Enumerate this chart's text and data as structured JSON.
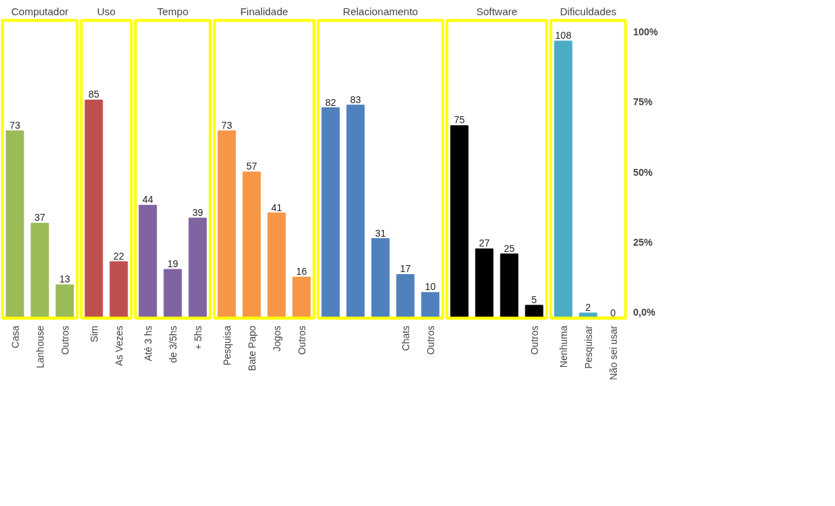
{
  "chart_data": [
    {
      "type": "bar",
      "title": "Computador",
      "categories": [
        "Casa",
        "Lanhouse",
        "Outros"
      ],
      "values": [
        73,
        37,
        13
      ],
      "color": "#9bbb59",
      "data_labels": true,
      "ylim": [
        0,
        116
      ],
      "tick_labels": "x"
    },
    {
      "type": "bar",
      "title": "Uso",
      "categories": [
        "Sim",
        "As Vezes"
      ],
      "values": [
        85,
        22
      ],
      "color": "#c0504d",
      "data_labels": true,
      "ylim": [
        0,
        116
      ],
      "tick_labels": "x"
    },
    {
      "type": "bar",
      "title": "Tempo",
      "categories": [
        "Até 3 hs",
        "de 3/5hs",
        "+ 5hs"
      ],
      "values": [
        44,
        19,
        39
      ],
      "color": "#8064a2",
      "data_labels": true,
      "ylim": [
        0,
        116
      ],
      "tick_labels": "x"
    },
    {
      "type": "bar",
      "title": "Finalidade",
      "categories": [
        "Pesquisa",
        "Bate Papo",
        "Jogos",
        "Outros"
      ],
      "values": [
        73,
        57,
        41,
        16
      ],
      "color": "#f79646",
      "data_labels": true,
      "ylim": [
        0,
        116
      ],
      "tick_labels": "x"
    },
    {
      "type": "bar",
      "title": "Relacionamento",
      "categories": [
        null,
        null,
        null,
        "Chats",
        "Outros"
      ],
      "values": [
        82,
        83,
        31,
        17,
        10
      ],
      "color": "#4f81bd",
      "data_labels": true,
      "ylim": [
        0,
        116
      ],
      "tick_labels": "x"
    },
    {
      "type": "bar",
      "title": "Software",
      "categories": [
        null,
        null,
        null,
        "Outros"
      ],
      "values": [
        75,
        27,
        25,
        5
      ],
      "color": "#000000",
      "data_labels": true,
      "ylim": [
        0,
        116
      ],
      "tick_labels": "x"
    },
    {
      "type": "bar",
      "title": "Dificuldades",
      "categories": [
        "Nenhuma",
        "Pesquisar",
        "Não sei usar"
      ],
      "values": [
        108,
        2,
        0
      ],
      "color": "#4bacc6",
      "data_labels": true,
      "ylim": [
        0,
        116
      ],
      "tick_labels": "x",
      "y2lim": [
        -2,
        104
      ],
      "y2ticks": [
        {
          "value": 0,
          "label": "0,0%"
        },
        {
          "value": 25,
          "label": "25%"
        },
        {
          "value": 50,
          "label": "50%"
        },
        {
          "value": 75,
          "label": "75%"
        },
        {
          "value": 100,
          "label": "100%"
        }
      ]
    }
  ]
}
